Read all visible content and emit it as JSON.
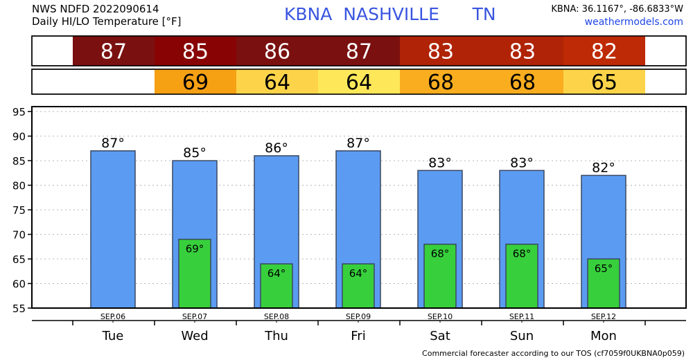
{
  "header": {
    "line1": "NWS NDFD 2022090614",
    "line2": "Daily HI/LO Temperature [°F]",
    "station_code": "KBNA",
    "station_name": "NASHVILLE",
    "state": "TN",
    "coords": "KBNA: 36.1167°, -86.6833°W",
    "site": "weathermodels.com"
  },
  "footer": "Commercial forecaster according to our TOS (cf7059f0UKBNA0p059)",
  "colors": {
    "high_bar": "#5b9cf2",
    "low_bar": "#37d03c",
    "bar_edge": "#3a4660",
    "hi_strip": [
      "#7b1010",
      "#880404",
      "#7b1010",
      "#7b1010",
      "#b02306",
      "#b02306",
      "#be2a05"
    ],
    "lo_strip": [
      null,
      "#f6a014",
      "#fdd449",
      "#fee85a",
      "#f9ad1f",
      "#f9ad1f",
      "#fdd449"
    ]
  },
  "chart_data": {
    "type": "bar",
    "categories": [
      "Tue",
      "Wed",
      "Thu",
      "Fri",
      "Sat",
      "Sun",
      "Mon"
    ],
    "dates": [
      "SEP.06",
      "SEP.07",
      "SEP.08",
      "SEP.09",
      "SEP.10",
      "SEP.11",
      "SEP.12"
    ],
    "series": [
      {
        "values": [
          87,
          85,
          86,
          87,
          83,
          83,
          82
        ],
        "labels": [
          "87°",
          "85°",
          "86°",
          "87°",
          "83°",
          "83°",
          "82°"
        ]
      },
      {
        "values": [
          null,
          69,
          64,
          64,
          68,
          68,
          65
        ],
        "labels": [
          "",
          "69°",
          "64°",
          "64°",
          "68°",
          "68°",
          "65°"
        ]
      }
    ],
    "strip_high": [
      "87",
      "85",
      "86",
      "87",
      "83",
      "83",
      "82"
    ],
    "strip_low": [
      "",
      "69",
      "64",
      "64",
      "68",
      "68",
      "65"
    ],
    "yticks": [
      "55",
      "60",
      "65",
      "70",
      "75",
      "80",
      "85",
      "90",
      "95"
    ],
    "ylim": [
      55,
      96
    ],
    "grid": true
  }
}
